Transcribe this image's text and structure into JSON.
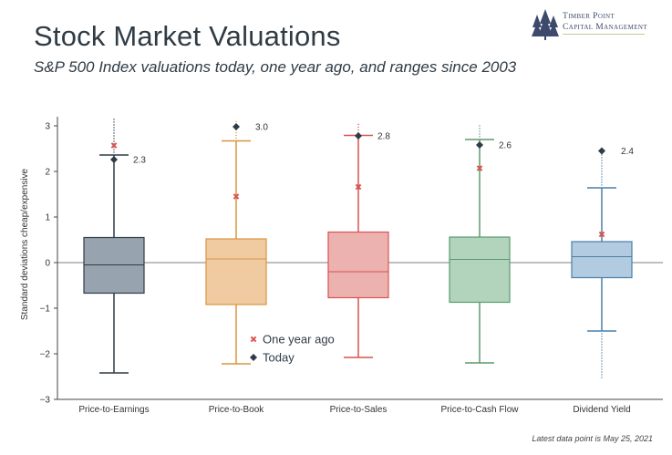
{
  "header": {
    "title": "Stock Market Valuations",
    "subtitle": "S&P 500 Index valuations today, one year ago, and ranges since 2003"
  },
  "logo": {
    "line1": "Timber Point",
    "line2": "Capital Management",
    "icon": "pine-trees-icon",
    "color": "#3e4a6b"
  },
  "footnote": "Latest data point is May 25, 2021",
  "chart_data": {
    "type": "box",
    "ylabel": "Standard deviations cheap/expensive",
    "ylim": [
      -3,
      3.3
    ],
    "yticks": [
      "3",
      "2",
      "1",
      "0",
      "−1",
      "−2",
      "−3"
    ],
    "ytick_values": [
      3,
      2,
      1,
      0,
      -1,
      -2,
      -3
    ],
    "grid": false,
    "zero_line": true,
    "legend_position": "bottom-left-inside",
    "legend": {
      "one_year_ago": "One year ago",
      "today": "Today"
    },
    "legend_colors": {
      "one_year_ago": "#d9534f",
      "today": "#2f3b45"
    },
    "series": [
      {
        "name": "Price-to-Earnings",
        "color": "#2f3b45",
        "fill": "#97a3ae",
        "whisker_low": -2.42,
        "q1": -0.67,
        "median": -0.05,
        "q3": 0.55,
        "whisker_high": 2.36,
        "outlier_max": 3.15,
        "outlier_min": null,
        "one_year_ago": 2.57,
        "today": 2.26,
        "today_label": "2.3"
      },
      {
        "name": "Price-to-Book",
        "color": "#d9953f",
        "fill": "#f0cba2",
        "whisker_low": -2.22,
        "q1": -0.92,
        "median": 0.08,
        "q3": 0.52,
        "whisker_high": 2.67,
        "outlier_max": 3.15,
        "outlier_min": null,
        "one_year_ago": 1.45,
        "today": 2.98,
        "today_label": "3.0"
      },
      {
        "name": "Price-to-Sales",
        "color": "#d9534f",
        "fill": "#ebb2b0",
        "whisker_low": -2.08,
        "q1": -0.77,
        "median": -0.2,
        "q3": 0.67,
        "whisker_high": 2.79,
        "outlier_max": 3.05,
        "outlier_min": null,
        "one_year_ago": 1.66,
        "today": 2.78,
        "today_label": "2.8"
      },
      {
        "name": "Price-to-Cash Flow",
        "color": "#5a9a6e",
        "fill": "#b2d3bc",
        "whisker_low": -2.2,
        "q1": -0.87,
        "median": 0.07,
        "q3": 0.56,
        "whisker_high": 2.7,
        "outlier_max": 3.05,
        "outlier_min": null,
        "one_year_ago": 2.07,
        "today": 2.58,
        "today_label": "2.6"
      },
      {
        "name": "Dividend Yield",
        "color": "#4a7fa8",
        "fill": "#b3cbe0",
        "whisker_low": -1.5,
        "q1": -0.33,
        "median": 0.13,
        "q3": 0.46,
        "whisker_high": 1.64,
        "outlier_max": 2.45,
        "outlier_min": -2.55,
        "one_year_ago": 0.62,
        "today": 2.45,
        "today_label": "2.4"
      }
    ]
  }
}
